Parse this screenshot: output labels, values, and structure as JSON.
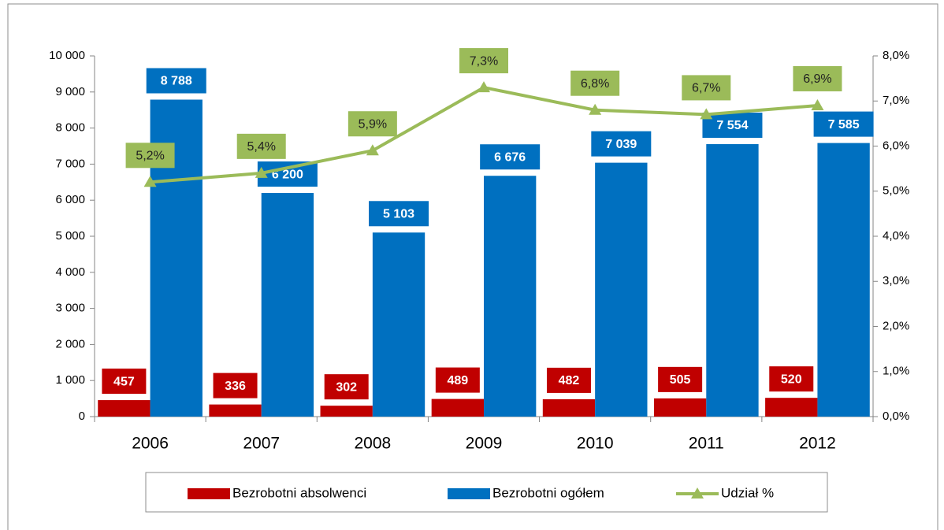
{
  "chart_data": {
    "type": "bar",
    "categories": [
      "2006",
      "2007",
      "2008",
      "2009",
      "2010",
      "2011",
      "2012"
    ],
    "series": [
      {
        "name": "Bezrobotni absolwenci",
        "color": "#c00000",
        "type": "bar",
        "values": [
          457,
          336,
          302,
          489,
          482,
          505,
          520
        ]
      },
      {
        "name": "Bezrobotni ogółem",
        "color": "#0070c0",
        "type": "bar",
        "values": [
          8788,
          6200,
          5103,
          6676,
          7039,
          7554,
          7585
        ],
        "value_labels": [
          "8 788",
          "6 200",
          "5 103",
          "6 676",
          "7 039",
          "7 554",
          "7 585"
        ]
      },
      {
        "name": "Udział %",
        "color": "#9bbb59",
        "type": "line",
        "axis": "y2",
        "values": [
          5.2,
          5.4,
          5.9,
          7.3,
          6.8,
          6.7,
          6.9
        ],
        "value_labels": [
          "5,2%",
          "5,4%",
          "5,9%",
          "7,3%",
          "6,8%",
          "6,7%",
          "6,9%"
        ]
      }
    ],
    "ylim": [
      0,
      10000
    ],
    "yticks": [
      0,
      {
        "value": 1000,
        "label": "1 000"
      },
      {
        "value": 2000,
        "label": "2 000"
      },
      {
        "value": 3000,
        "label": "3 000"
      },
      {
        "value": 4000,
        "label": "4 000"
      },
      {
        "value": 5000,
        "label": "5 000"
      },
      {
        "value": 6000,
        "label": "6 000"
      },
      {
        "value": 7000,
        "label": "7 000"
      },
      {
        "value": 8000,
        "label": "8 000"
      },
      {
        "value": 9000,
        "label": "9 000"
      },
      {
        "value": 10000,
        "label": "10 000"
      }
    ],
    "y2lim": [
      0,
      8
    ],
    "y2ticks": [
      {
        "value": 0,
        "label": "0,0%"
      },
      {
        "value": 1,
        "label": "1,0%"
      },
      {
        "value": 2,
        "label": "2,0%"
      },
      {
        "value": 3,
        "label": "3,0%"
      },
      {
        "value": 4,
        "label": "4,0%"
      },
      {
        "value": 5,
        "label": "5,0%"
      },
      {
        "value": 6,
        "label": "6,0%"
      },
      {
        "value": 7,
        "label": "7,0%"
      },
      {
        "value": 8,
        "label": "8,0%"
      }
    ],
    "grid": false,
    "legend": "bottom"
  }
}
